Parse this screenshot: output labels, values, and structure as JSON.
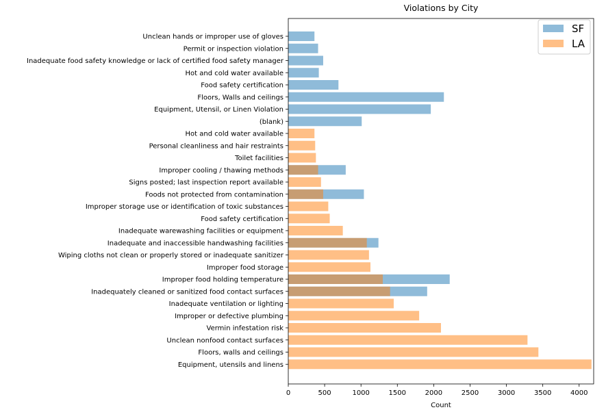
{
  "chart_data": {
    "type": "bar",
    "orientation": "horizontal",
    "title": "Violations by City",
    "xlabel": "Count",
    "ylabel": "",
    "xlim": [
      0,
      4200
    ],
    "xticks": [
      "0",
      "500",
      "1000",
      "1500",
      "2000",
      "2500",
      "3000",
      "3500",
      "4000"
    ],
    "grid": false,
    "legend_position": "top-right",
    "categories": [
      "Unclean hands or improper use of gloves",
      "Permit or inspection violation",
      "Inadequate food safety knowledge or lack of certified food safety manager",
      "Hot and cold water available",
      "Food safety certification",
      "Floors, Walls and ceilings",
      "Equipment, Utensil, or Linen Violation",
      "(blank)",
      "Hot and cold water available",
      "Personal cleanliness and hair restraints",
      "Toilet facilities",
      "Improper cooling / thawing methods",
      "Signs posted; last inspection report available",
      "Foods not protected from contamination",
      "Improper storage use or identification of toxic substances",
      "Food safety certification",
      "Inadequate warewashing facilities or equipment",
      "Inadequate and inaccessible handwashing facilities",
      "Wiping cloths not clean or properly stored or inadequate sanitizer",
      "Improper food storage",
      "Improper food holding temperature",
      "Inadequately cleaned or sanitized food contact surfaces",
      "Inadequate ventilation or lighting",
      "Improper or defective plumbing",
      "Vermin infestation risk",
      "Unclean nonfood contact surfaces",
      "Floors, walls and ceilings",
      "Equipment, utensils and linens"
    ],
    "series": [
      {
        "name": "SF",
        "color": "#1f77b4",
        "values": [
          360,
          410,
          480,
          420,
          690,
          2140,
          1960,
          1010,
          0,
          0,
          0,
          790,
          0,
          1040,
          0,
          0,
          0,
          1240,
          0,
          0,
          2220,
          1910,
          0,
          0,
          0,
          0,
          0,
          0
        ]
      },
      {
        "name": "LA",
        "color": "#ff7f0e",
        "values": [
          0,
          0,
          0,
          0,
          0,
          0,
          0,
          0,
          360,
          370,
          380,
          410,
          450,
          480,
          550,
          570,
          750,
          1080,
          1110,
          1130,
          1300,
          1400,
          1450,
          1800,
          2100,
          3290,
          3440,
          4170
        ]
      }
    ]
  }
}
